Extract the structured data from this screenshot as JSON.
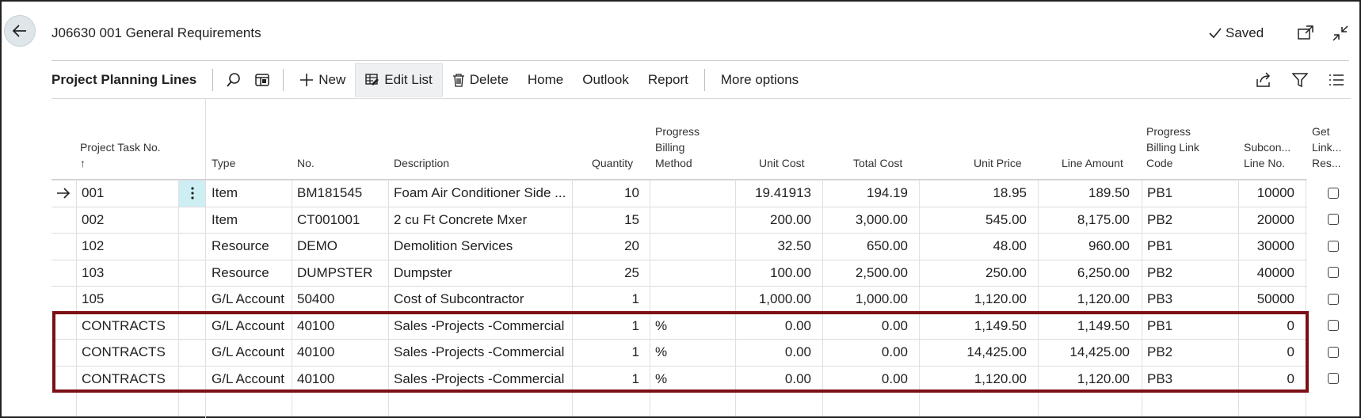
{
  "header": {
    "title": "J06630 001 General Requirements",
    "saved_label": "Saved"
  },
  "actionbar": {
    "title": "Project Planning Lines",
    "new_label": "New",
    "edit_list_label": "Edit List",
    "delete_label": "Delete",
    "home_label": "Home",
    "outlook_label": "Outlook",
    "report_label": "Report",
    "more_options_label": "More options"
  },
  "columns": {
    "task_no": "Project Task No.",
    "sort_arrow": "↑",
    "type": "Type",
    "no": "No.",
    "description": "Description",
    "quantity": "Quantity",
    "pbm_1": "Progress",
    "pbm_2": "Billing",
    "pbm_3": "Method",
    "unit_cost": "Unit Cost",
    "total_cost": "Total Cost",
    "unit_price": "Unit Price",
    "line_amount": "Line Amount",
    "pbl_1": "Progress",
    "pbl_2": "Billing Link",
    "pbl_3": "Code",
    "sub_1": "Subcon...",
    "sub_2": "Line No.",
    "get_1": "Get",
    "get_2": "Link...",
    "get_3": "Res..."
  },
  "rows": [
    {
      "task": "001",
      "type": "Item",
      "no": "BM181545",
      "desc": "Foam Air Conditioner Side ...",
      "qty": "10",
      "pbm": "",
      "unit_cost": "19.41913",
      "total_cost": "194.19",
      "unit_price": "18.95",
      "line_amount": "189.50",
      "pbl": "PB1",
      "sub_line": "10000"
    },
    {
      "task": "002",
      "type": "Item",
      "no": "CT001001",
      "desc": "2 cu Ft Concrete Mxer",
      "qty": "15",
      "pbm": "",
      "unit_cost": "200.00",
      "total_cost": "3,000.00",
      "unit_price": "545.00",
      "line_amount": "8,175.00",
      "pbl": "PB2",
      "sub_line": "20000"
    },
    {
      "task": "102",
      "type": "Resource",
      "no": "DEMO",
      "desc": "Demolition Services",
      "qty": "20",
      "pbm": "",
      "unit_cost": "32.50",
      "total_cost": "650.00",
      "unit_price": "48.00",
      "line_amount": "960.00",
      "pbl": "PB1",
      "sub_line": "30000"
    },
    {
      "task": "103",
      "type": "Resource",
      "no": "DUMPSTER",
      "desc": "Dumpster",
      "qty": "25",
      "pbm": "",
      "unit_cost": "100.00",
      "total_cost": "2,500.00",
      "unit_price": "250.00",
      "line_amount": "6,250.00",
      "pbl": "PB2",
      "sub_line": "40000"
    },
    {
      "task": "105",
      "type": "G/L Account",
      "no": "50400",
      "desc": "Cost of Subcontractor",
      "qty": "1",
      "pbm": "",
      "unit_cost": "1,000.00",
      "total_cost": "1,000.00",
      "unit_price": "1,120.00",
      "line_amount": "1,120.00",
      "pbl": "PB3",
      "sub_line": "50000"
    },
    {
      "task": "CONTRACTS",
      "type": "G/L Account",
      "no": "40100",
      "desc": "Sales -Projects -Commercial",
      "qty": "1",
      "pbm": "%",
      "unit_cost": "0.00",
      "total_cost": "0.00",
      "unit_price": "1,149.50",
      "line_amount": "1,149.50",
      "pbl": "PB1",
      "sub_line": "0"
    },
    {
      "task": "CONTRACTS",
      "type": "G/L Account",
      "no": "40100",
      "desc": "Sales -Projects -Commercial",
      "qty": "1",
      "pbm": "%",
      "unit_cost": "0.00",
      "total_cost": "0.00",
      "unit_price": "14,425.00",
      "line_amount": "14,425.00",
      "pbl": "PB2",
      "sub_line": "0"
    },
    {
      "task": "CONTRACTS",
      "type": "G/L Account",
      "no": "40100",
      "desc": "Sales -Projects -Commercial",
      "qty": "1",
      "pbm": "%",
      "unit_cost": "0.00",
      "total_cost": "0.00",
      "unit_price": "1,120.00",
      "line_amount": "1,120.00",
      "pbl": "PB3",
      "sub_line": "0"
    }
  ],
  "colors": {
    "highlight": "#7b0f14",
    "selected_cell": "#cdeef3"
  }
}
